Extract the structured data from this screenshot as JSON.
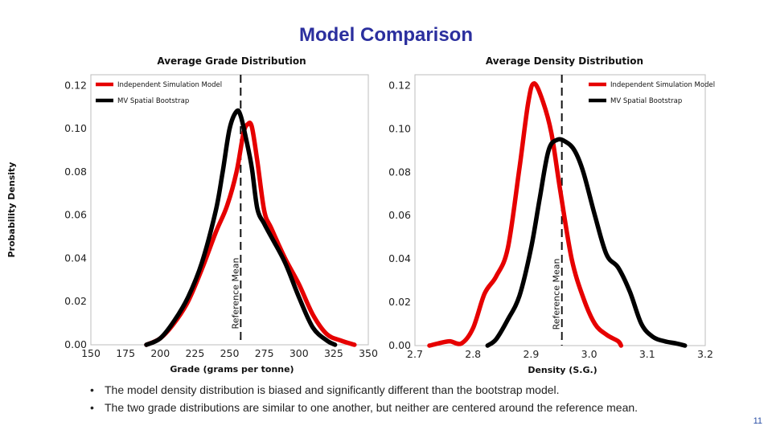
{
  "slide": {
    "title": "Model Comparison",
    "bullets": [
      "The model density distribution is biased and significantly different than the bootstrap model.",
      "The two grade distributions are similar to one another, but neither are centered around the reference mean."
    ],
    "page_number": "11"
  },
  "colors": {
    "independent": "#e60000",
    "bootstrap": "#000000",
    "title": "#2b2f9e"
  },
  "chart_data": [
    {
      "type": "line",
      "title": "Average Grade Distribution",
      "xlabel": "Grade (grams per tonne)",
      "ylabel": "Probability Density",
      "xlim": [
        150,
        350
      ],
      "ylim": [
        0,
        0.125
      ],
      "xticks": [
        150,
        175,
        200,
        225,
        250,
        275,
        300,
        325,
        350
      ],
      "yticks": [
        0.0,
        0.02,
        0.04,
        0.06,
        0.08,
        0.1,
        0.12
      ],
      "xtick_labels": [
        "150",
        "175",
        "200",
        "225",
        "250",
        "275",
        "300",
        "325",
        "350"
      ],
      "ytick_labels": [
        "0.00",
        "0.02",
        "0.04",
        "0.06",
        "0.08",
        "0.10",
        "0.12"
      ],
      "reference_mean": {
        "x": 258,
        "label": "Reference Mean"
      },
      "legend": {
        "position": "top-left",
        "entries": [
          "Independent Simulation Model",
          "MV Spatial Bootstrap"
        ]
      },
      "series": [
        {
          "name": "Independent Simulation Model",
          "color": "#e60000",
          "x": [
            190,
            200,
            210,
            220,
            230,
            240,
            248,
            255,
            260,
            263,
            266,
            270,
            275,
            280,
            290,
            300,
            310,
            320,
            330,
            340
          ],
          "y": [
            0.0,
            0.003,
            0.01,
            0.02,
            0.035,
            0.052,
            0.064,
            0.08,
            0.098,
            0.102,
            0.101,
            0.085,
            0.062,
            0.054,
            0.04,
            0.028,
            0.014,
            0.005,
            0.002,
            0.0
          ]
        },
        {
          "name": "MV Spatial Bootstrap",
          "color": "#000000",
          "x": [
            190,
            200,
            210,
            220,
            230,
            240,
            245,
            250,
            255,
            258,
            262,
            266,
            270,
            275,
            280,
            290,
            300,
            310,
            320,
            326
          ],
          "y": [
            0.0,
            0.003,
            0.011,
            0.022,
            0.038,
            0.062,
            0.08,
            0.1,
            0.108,
            0.106,
            0.095,
            0.082,
            0.063,
            0.056,
            0.05,
            0.038,
            0.022,
            0.008,
            0.002,
            0.0
          ]
        }
      ]
    },
    {
      "type": "line",
      "title": "Average Density Distribution",
      "xlabel": "Density (S.G.)",
      "ylabel": "",
      "xlim": [
        2.7,
        3.2
      ],
      "ylim": [
        0,
        0.125
      ],
      "xticks": [
        2.7,
        2.8,
        2.9,
        3.0,
        3.1,
        3.2
      ],
      "yticks": [
        0.0,
        0.02,
        0.04,
        0.06,
        0.08,
        0.1,
        0.12
      ],
      "xtick_labels": [
        "2.7",
        "2.8",
        "2.9",
        "3.0",
        "3.1",
        "3.2"
      ],
      "ytick_labels": [
        "0.00",
        "0.02",
        "0.04",
        "0.06",
        "0.08",
        "0.10",
        "0.12"
      ],
      "reference_mean": {
        "x": 2.953,
        "label": "Reference Mean"
      },
      "legend": {
        "position": "top-right",
        "entries": [
          "Independent Simulation Model",
          "MV Spatial Bootstrap"
        ]
      },
      "series": [
        {
          "name": "Independent Simulation Model",
          "color": "#e60000",
          "x": [
            2.725,
            2.74,
            2.76,
            2.78,
            2.8,
            2.82,
            2.84,
            2.86,
            2.88,
            2.895,
            2.905,
            2.92,
            2.935,
            2.95,
            2.97,
            2.99,
            3.01,
            3.03,
            3.05,
            3.055
          ],
          "y": [
            0.0,
            0.001,
            0.002,
            0.001,
            0.008,
            0.024,
            0.032,
            0.045,
            0.082,
            0.112,
            0.121,
            0.113,
            0.098,
            0.072,
            0.04,
            0.022,
            0.01,
            0.005,
            0.002,
            0.0
          ]
        },
        {
          "name": "MV Spatial Bootstrap",
          "color": "#000000",
          "x": [
            2.825,
            2.84,
            2.86,
            2.88,
            2.9,
            2.915,
            2.93,
            2.945,
            2.96,
            2.975,
            2.99,
            3.01,
            3.03,
            3.05,
            3.07,
            3.09,
            3.11,
            3.13,
            3.15,
            3.165
          ],
          "y": [
            0.0,
            0.003,
            0.012,
            0.023,
            0.045,
            0.068,
            0.09,
            0.095,
            0.094,
            0.09,
            0.08,
            0.06,
            0.042,
            0.036,
            0.025,
            0.01,
            0.004,
            0.002,
            0.001,
            0.0
          ]
        }
      ]
    }
  ]
}
